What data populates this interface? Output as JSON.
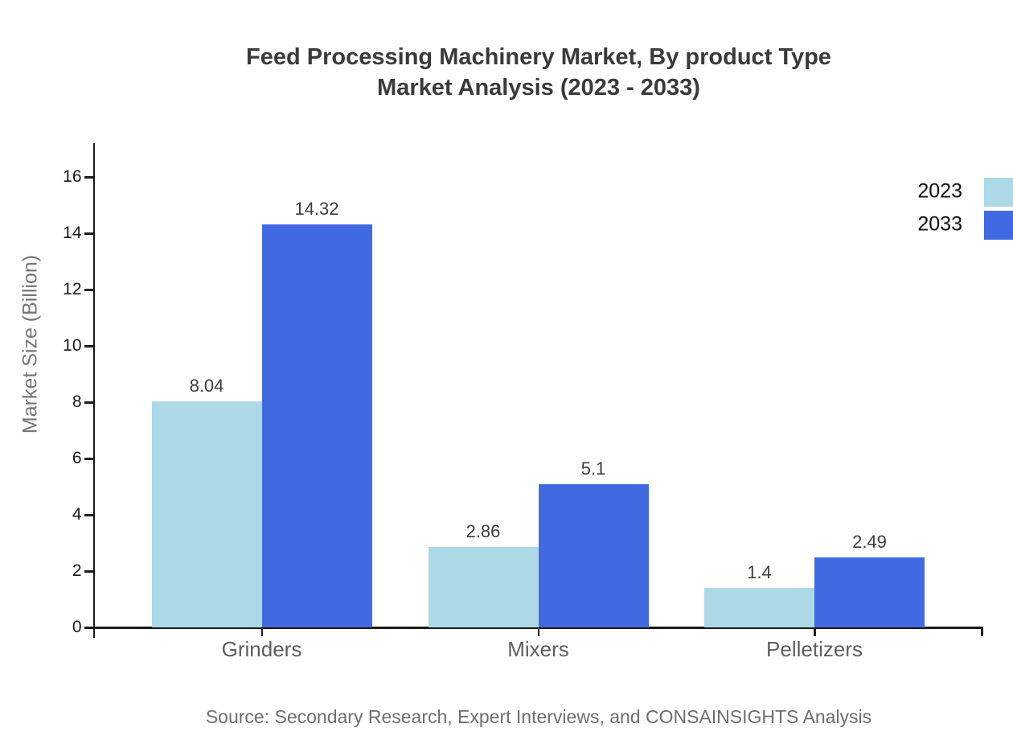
{
  "title": {
    "line1": "Feed Processing Machinery Market, By product Type",
    "line2": "Market Analysis (2023 - 2033)"
  },
  "source": "Source: Secondary Research, Expert Interviews, and CONSAINSIGHTS Analysis",
  "chart_data": {
    "type": "bar",
    "title": "Feed Processing Machinery Market, By product Type Market Analysis (2023 - 2033)",
    "categories": [
      "Grinders",
      "Mixers",
      "Pelletizers"
    ],
    "series": [
      {
        "name": "2023",
        "color": "#ADD8E6",
        "values": [
          8.04,
          2.86,
          1.4
        ],
        "labels": [
          "8.04",
          "2.86",
          "1.4"
        ]
      },
      {
        "name": "2033",
        "color": "#4169E1",
        "values": [
          14.32,
          5.1,
          2.49
        ],
        "labels": [
          "14.32",
          "5.1",
          "2.49"
        ]
      }
    ],
    "xlabel": "",
    "ylabel": "Market Size (Billion)",
    "yticks": [
      0,
      2,
      4,
      6,
      8,
      10,
      12,
      14,
      16
    ],
    "ylim": [
      0,
      17.2
    ],
    "grid": false,
    "legend_position": "top-right",
    "axis_color": "#1a1a1a"
  }
}
